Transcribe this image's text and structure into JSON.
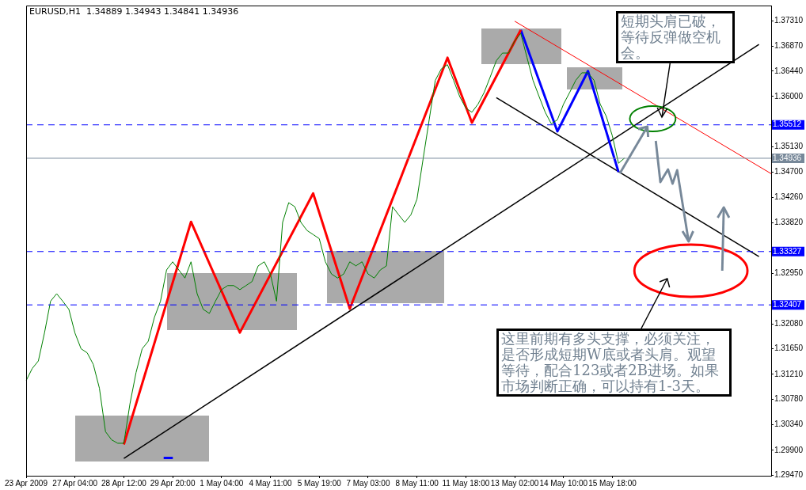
{
  "chart_data": {
    "type": "line",
    "title": "EURUSD,H1  1.34889 1.34943 1.34841 1.34936",
    "categories": [
      "23 Apr 2009",
      null,
      null,
      null,
      null,
      null,
      null,
      null,
      "27 Apr 04:00",
      null,
      null,
      null,
      null,
      null,
      null,
      null,
      "28 Apr 12:00",
      null,
      null,
      null,
      null,
      null,
      null,
      null,
      "29 Apr 20:00",
      null,
      null,
      null,
      null,
      null,
      null,
      null,
      "1 May 04:00",
      null,
      null,
      null,
      null,
      null,
      null,
      null,
      "4 May 11:00",
      null,
      null,
      null,
      null,
      null,
      null,
      null,
      "5 May 19:00",
      null,
      null,
      null,
      null,
      null,
      null,
      null,
      "7 May 03:00",
      null,
      null,
      null,
      null,
      null,
      null,
      null,
      "8 May 11:00",
      null,
      null,
      null,
      null,
      null,
      null,
      null,
      "11 May 18:00",
      null,
      null,
      null,
      null,
      null,
      null,
      null,
      "13 May 02:00",
      null,
      null,
      null,
      null,
      null,
      null,
      null,
      "14 May 10:00",
      null,
      null,
      null,
      null,
      null,
      null,
      null,
      "15 May 18:00",
      null,
      null,
      null,
      null,
      null,
      null,
      null,
      null,
      null,
      null,
      null,
      null,
      null,
      null,
      null,
      null,
      null,
      null,
      null,
      null,
      null,
      null,
      null,
      null,
      null,
      null
    ],
    "series": [
      {
        "color": "#008000",
        "values": [
          1.311,
          1.3131,
          1.3144,
          1.3192,
          1.3247,
          1.326,
          1.3247,
          1.3233,
          1.3192,
          1.3165,
          1.3158,
          1.3138,
          1.3097,
          1.3022,
          1.3008,
          1.3002,
          1.3002,
          1.307,
          1.3124,
          1.3165,
          1.3178,
          1.3219,
          1.3247,
          1.3301,
          1.3315,
          1.3301,
          1.3287,
          1.3315,
          1.326,
          1.3233,
          1.3226,
          1.3247,
          1.3267,
          1.3274,
          1.3274,
          1.3267,
          1.3274,
          1.3281,
          1.3308,
          1.3315,
          1.3294,
          1.3247,
          1.3383,
          1.3417,
          1.341,
          1.3383,
          1.3369,
          1.3362,
          1.3355,
          1.3315,
          1.3294,
          1.3287,
          1.3294,
          1.3315,
          1.3308,
          1.3315,
          1.3294,
          1.3287,
          1.3301,
          1.3308,
          1.341,
          1.3396,
          1.3383,
          1.3396,
          1.3423,
          1.3492,
          1.356,
          1.3628,
          1.3648,
          1.3655,
          1.3628,
          1.36,
          1.358,
          1.3573,
          1.3587,
          1.3607,
          1.3634,
          1.3662,
          1.3675,
          1.3675,
          1.3696,
          1.3709,
          1.3668,
          1.3628,
          1.36,
          1.3573,
          1.3553,
          1.356,
          1.3587,
          1.3607,
          1.3628,
          1.3641,
          1.3641,
          1.3628,
          1.3587,
          1.3566,
          1.3532,
          1.3485,
          1.3494,
          null,
          null,
          null,
          null,
          null,
          null,
          null,
          null,
          null,
          null,
          null,
          null,
          null,
          null,
          null,
          null,
          null,
          null,
          null,
          null,
          null,
          null,
          null,
          null
        ]
      },
      {
        "color": "#ff0000",
        "values": [
          null,
          null,
          null,
          null,
          null,
          null,
          null,
          null,
          null,
          null,
          null,
          null,
          null,
          null,
          null,
          null,
          1.3,
          null,
          null,
          null,
          null,
          null,
          null,
          null,
          null,
          null,
          null,
          1.3384,
          null,
          null,
          null,
          null,
          null,
          null,
          null,
          1.3193,
          null,
          null,
          null,
          null,
          null,
          null,
          null,
          null,
          null,
          null,
          null,
          1.3433,
          null,
          null,
          null,
          null,
          null,
          1.3234,
          null,
          null,
          null,
          null,
          null,
          null,
          null,
          null,
          null,
          null,
          null,
          null,
          null,
          null,
          null,
          1.3667,
          null,
          null,
          null,
          1.3555,
          null,
          null,
          null,
          null,
          null,
          null,
          null,
          1.3715,
          null,
          null,
          null,
          null,
          null,
          null,
          null,
          null,
          null,
          null,
          null,
          null,
          null,
          null,
          null,
          null,
          null,
          null,
          null,
          null,
          null,
          null,
          null,
          null,
          null,
          null,
          null,
          null,
          null,
          null,
          null,
          null,
          null,
          null,
          null,
          null,
          null,
          null,
          null,
          null,
          null
        ]
      },
      {
        "color": "#0000ff",
        "values": [
          null,
          null,
          null,
          null,
          null,
          null,
          null,
          null,
          null,
          null,
          null,
          null,
          null,
          null,
          null,
          null,
          null,
          null,
          null,
          null,
          null,
          null,
          null,
          null,
          null,
          null,
          null,
          null,
          null,
          null,
          null,
          null,
          null,
          null,
          null,
          null,
          null,
          null,
          null,
          null,
          null,
          null,
          null,
          null,
          null,
          null,
          null,
          null,
          null,
          null,
          null,
          null,
          null,
          null,
          null,
          null,
          null,
          null,
          null,
          null,
          null,
          null,
          null,
          null,
          null,
          null,
          null,
          null,
          null,
          null,
          null,
          null,
          null,
          null,
          null,
          null,
          null,
          null,
          null,
          null,
          null,
          1.3715,
          null,
          null,
          null,
          null,
          null,
          1.354,
          null,
          null,
          null,
          null,
          1.3644,
          null,
          null,
          null,
          null,
          1.347,
          null,
          null,
          null,
          null,
          null,
          null,
          null,
          null,
          null,
          null,
          null,
          null,
          null,
          null,
          null,
          null,
          null,
          null,
          null,
          null,
          null,
          null,
          null,
          null,
          null
        ]
      },
      {
        "color": "#000000",
        "values": [
          null,
          null,
          null,
          null,
          null,
          null,
          null,
          null,
          null,
          null,
          null,
          null,
          null,
          null,
          null,
          null,
          1.2976,
          null,
          null,
          null,
          null,
          null,
          null,
          null,
          null,
          null,
          null,
          null,
          null,
          null,
          null,
          null,
          null,
          null,
          null,
          null,
          null,
          null,
          null,
          null,
          null,
          null,
          null,
          null,
          null,
          null,
          null,
          null,
          null,
          null,
          null,
          null,
          null,
          null,
          null,
          null,
          null,
          null,
          null,
          null,
          null,
          null,
          null,
          null,
          null,
          null,
          null,
          null,
          null,
          null,
          null,
          null,
          null,
          null,
          null,
          null,
          null,
          null,
          null,
          null,
          null,
          null,
          null,
          null,
          null,
          null,
          null,
          null,
          null,
          null,
          null,
          null,
          null,
          null,
          null,
          null,
          null,
          null,
          null,
          null,
          null,
          null,
          null,
          null,
          null,
          null,
          null,
          null,
          null,
          null,
          null,
          null,
          null,
          null,
          null,
          null,
          null,
          null,
          null,
          null,
          1.369,
          null,
          null
        ]
      },
      {
        "color": "#000000",
        "values": [
          null,
          null,
          null,
          null,
          null,
          null,
          null,
          null,
          null,
          null,
          null,
          null,
          null,
          null,
          null,
          null,
          null,
          null,
          null,
          null,
          null,
          null,
          null,
          null,
          null,
          null,
          null,
          null,
          null,
          null,
          null,
          null,
          null,
          null,
          null,
          null,
          null,
          null,
          null,
          null,
          null,
          null,
          null,
          null,
          null,
          null,
          null,
          null,
          null,
          null,
          null,
          null,
          null,
          null,
          null,
          null,
          null,
          null,
          null,
          null,
          null,
          null,
          null,
          null,
          null,
          null,
          null,
          null,
          null,
          null,
          null,
          null,
          null,
          null,
          null,
          null,
          null,
          1.3598,
          null,
          null,
          null,
          null,
          null,
          null,
          null,
          null,
          null,
          null,
          null,
          null,
          null,
          null,
          null,
          null,
          null,
          null,
          null,
          null,
          null,
          null,
          null,
          null,
          null,
          null,
          null,
          null,
          null,
          null,
          null,
          null,
          null,
          null,
          null,
          null,
          null,
          null,
          null,
          null,
          null,
          null,
          1.3324,
          null,
          null
        ]
      },
      {
        "color": "#ff0000",
        "values": [
          null,
          null,
          null,
          null,
          null,
          null,
          null,
          null,
          null,
          null,
          null,
          null,
          null,
          null,
          null,
          null,
          null,
          null,
          null,
          null,
          null,
          null,
          null,
          null,
          null,
          null,
          null,
          null,
          null,
          null,
          null,
          null,
          null,
          null,
          null,
          null,
          null,
          null,
          null,
          null,
          null,
          null,
          null,
          null,
          null,
          null,
          null,
          null,
          null,
          null,
          null,
          null,
          null,
          null,
          null,
          null,
          null,
          null,
          null,
          null,
          null,
          null,
          null,
          null,
          null,
          null,
          null,
          null,
          null,
          null,
          null,
          null,
          null,
          null,
          null,
          null,
          null,
          null,
          null,
          null,
          1.373,
          null,
          null,
          null,
          null,
          null,
          null,
          null,
          null,
          null,
          null,
          null,
          null,
          null,
          null,
          null,
          null,
          null,
          null,
          null,
          null,
          null,
          null,
          null,
          null,
          null,
          null,
          null,
          null,
          null,
          null,
          null,
          null,
          null,
          null,
          null,
          null,
          null,
          null,
          null,
          null,
          null,
          1.3467
        ]
      }
    ],
    "ylim": [
      1.2946,
      1.3757
    ],
    "yticks": [
      {
        "value": 1.2947,
        "label": "1.29470"
      },
      {
        "value": 1.299,
        "label": "1.29900"
      },
      {
        "value": 1.3034,
        "label": "1.30340"
      },
      {
        "value": 1.3078,
        "label": "1.30780"
      },
      {
        "value": 1.3121,
        "label": "1.31210"
      },
      {
        "value": 1.3165,
        "label": "1.31650"
      },
      {
        "value": 1.3208,
        "label": "1.32080"
      },
      {
        "value": 1.3295,
        "label": "1.32950"
      },
      {
        "value": 1.3382,
        "label": "1.33820"
      },
      {
        "value": 1.3426,
        "label": "1.34260"
      },
      {
        "value": 1.347,
        "label": "1.34700"
      },
      {
        "value": 1.3513,
        "label": "1.35130"
      },
      {
        "value": 1.36,
        "label": "1.36000"
      },
      {
        "value": 1.3644,
        "label": "1.36440"
      },
      {
        "value": 1.3687,
        "label": "1.36870"
      },
      {
        "value": 1.3731,
        "label": "1.37310"
      }
    ],
    "ref_lines": [
      {
        "axis": "y",
        "value": 1.35512,
        "label": "1.35512",
        "color": "#0000ff",
        "line_style": "dashed"
      },
      {
        "axis": "y",
        "value": 1.34936,
        "label": "1.34936",
        "color": "#778899",
        "line_style": "solid"
      },
      {
        "axis": "y",
        "value": 1.33327,
        "label": "1.33327",
        "color": "#0000ff",
        "line_style": "dashed"
      },
      {
        "axis": "y",
        "value": 1.32407,
        "label": "1.32407",
        "color": "#0000ff",
        "line_style": "dashed"
      }
    ],
    "annotations": [
      "短期头肩已破，等待反弹做空机会。",
      "这里前期有多头支撑，必须关注，是否形成短期W底或者头肩。观望等待，配合123或者2B进场。如果市场判断正确，可以持有1-3天。"
    ],
    "grid": false,
    "legend": false,
    "marker": "none",
    "line_style": "solid"
  }
}
